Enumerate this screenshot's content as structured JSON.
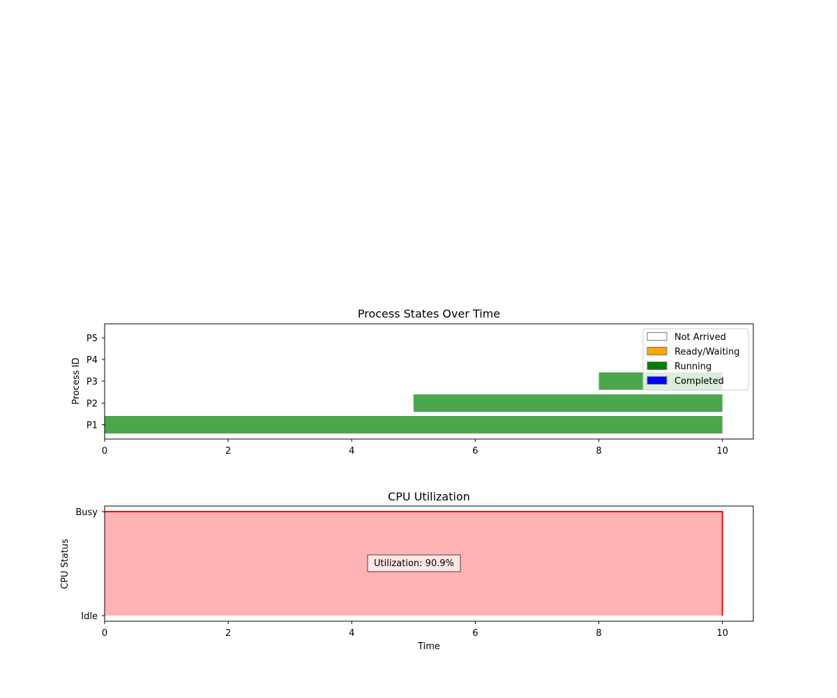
{
  "chart_data": [
    {
      "type": "bar",
      "orientation": "horizontal",
      "title": "Process States Over Time",
      "ylabel": "Process ID",
      "xlabel": "",
      "categories": [
        "P1",
        "P2",
        "P3",
        "P4",
        "P5"
      ],
      "xlim": [
        0,
        10.5
      ],
      "xticks": [
        0,
        2,
        4,
        6,
        8,
        10
      ],
      "segments": [
        {
          "process": "P1",
          "start": 0,
          "end": 10,
          "state": "Running"
        },
        {
          "process": "P2",
          "start": 5,
          "end": 10,
          "state": "Running"
        },
        {
          "process": "P3",
          "start": 8,
          "end": 10,
          "state": "Running"
        }
      ],
      "legend": {
        "placement": "upper-right",
        "entries": [
          {
            "label": "Not Arrived",
            "color": "#ffffff"
          },
          {
            "label": "Ready/Waiting",
            "color": "#ffa500"
          },
          {
            "label": "Running",
            "color": "#008000"
          },
          {
            "label": "Completed",
            "color": "#0000ff"
          }
        ]
      },
      "bar_color": "#4ca64c"
    },
    {
      "type": "area",
      "title": "CPU Utilization",
      "ylabel": "CPU Status",
      "xlabel": "Time",
      "xlim": [
        0,
        10.5
      ],
      "xticks": [
        0,
        2,
        4,
        6,
        8,
        10
      ],
      "ylim": [
        0,
        1
      ],
      "yticks": [
        {
          "value": 0,
          "label": "Idle"
        },
        {
          "value": 1,
          "label": "Busy"
        }
      ],
      "x": [
        0,
        10,
        10
      ],
      "y": [
        1,
        1,
        0
      ],
      "fill_color": "#ffb2b2",
      "line_color": "#ff0000",
      "annotation": "Utilization: 90.9%"
    }
  ]
}
